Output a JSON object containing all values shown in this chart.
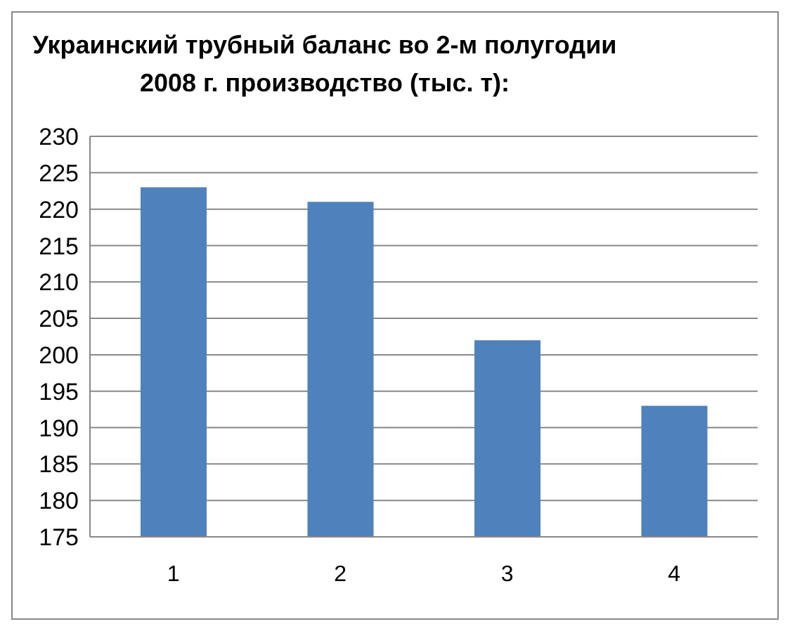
{
  "chart_data": {
    "type": "bar",
    "title": "Украинский трубный баланс во 2-м полугодии 2008 г. производство (тыс. т):",
    "categories": [
      "1",
      "2",
      "3",
      "4"
    ],
    "values": [
      223,
      221,
      202,
      193
    ],
    "color": "#4f81bd",
    "ylim": [
      175,
      230
    ],
    "yticks": [
      175,
      180,
      185,
      190,
      195,
      200,
      205,
      210,
      215,
      220,
      225,
      230
    ],
    "grid": "y"
  }
}
